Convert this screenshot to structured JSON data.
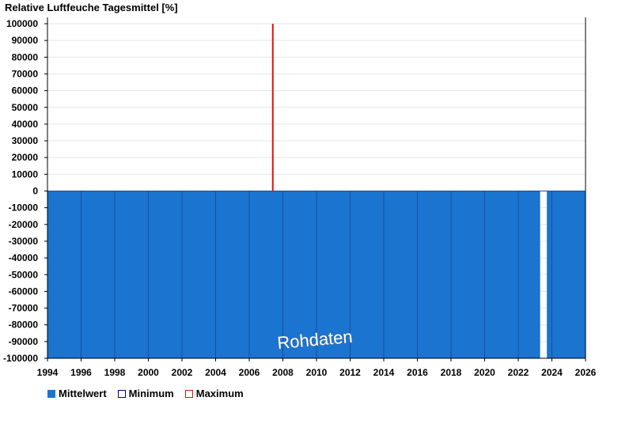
{
  "chart_data": {
    "type": "bar",
    "title": "Relative Luftfeuche Tagesmittel [%]",
    "ylim": [
      -100000,
      100000
    ],
    "yticks": [
      100000,
      90000,
      80000,
      70000,
      60000,
      50000,
      40000,
      30000,
      20000,
      10000,
      0,
      -10000,
      -20000,
      -30000,
      -40000,
      -50000,
      -60000,
      -70000,
      -80000,
      -90000,
      -100000
    ],
    "xlim": [
      1994,
      2026
    ],
    "xticks": [
      1994,
      1996,
      1998,
      2000,
      2002,
      2004,
      2006,
      2008,
      2010,
      2012,
      2014,
      2016,
      2018,
      2020,
      2022,
      2024,
      2026
    ],
    "series": [
      {
        "name": "Mittelwert",
        "color": "#1a74d0",
        "segments": [
          {
            "from": 1994,
            "to": 2023.3,
            "value": -100000
          },
          {
            "from": 2023.7,
            "to": 2026,
            "value": -100000
          }
        ]
      },
      {
        "name": "Minimum",
        "color": "#000080"
      },
      {
        "name": "Maximum",
        "color": "#e01010",
        "spikes": [
          {
            "x": 2007.4,
            "value": 100000
          }
        ]
      }
    ],
    "annotation": "Rohdaten",
    "grid": true,
    "legend_position": "bottom-left"
  },
  "legend": [
    {
      "label": "Mittelwert",
      "icon": "filled-square",
      "color": "#1a74d0"
    },
    {
      "label": "Minimum",
      "icon": "hollow-square",
      "color": "#000080"
    },
    {
      "label": "Maximum",
      "icon": "hollow-square",
      "color": "#e01010"
    }
  ]
}
